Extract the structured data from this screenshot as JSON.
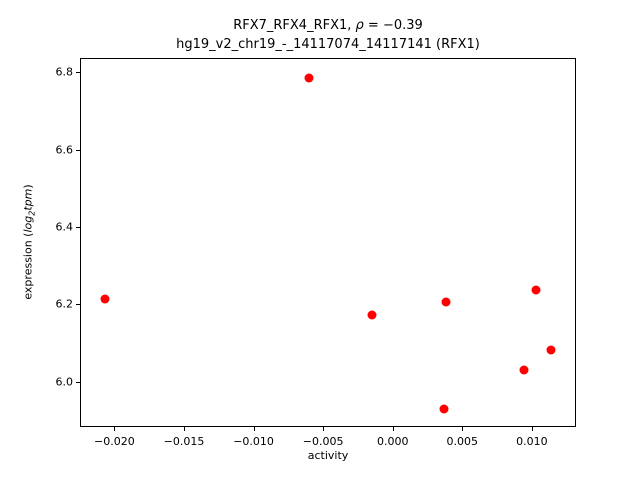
{
  "chart_data": {
    "type": "scatter",
    "title_line1": "RFX7_RFX4_RFX1, ρ = −0.39",
    "title_line2": "hg19_v2_chr19_-_14117074_14117141 (RFX1)",
    "title_parts": {
      "prefix": "RFX7_RFX4_RFX1, ",
      "rho": "ρ",
      "rest": " = −0.39"
    },
    "xlabel": "activity",
    "ylabel": "expression (log2tpm)",
    "ylabel_parts": {
      "prefix": "expression (",
      "log": "log",
      "sub": "2",
      "tpm": "tpm",
      "suffix": ")"
    },
    "marker_color": "#ff0000",
    "axes_color": "#000000",
    "grid": false,
    "legend": "none",
    "xlim": [
      -0.0224,
      0.0131
    ],
    "ylim": [
      5.886,
      6.834
    ],
    "xticks": {
      "values": [
        -0.02,
        -0.015,
        -0.01,
        -0.005,
        0.0,
        0.005,
        0.01
      ],
      "labels": [
        "−0.020",
        "−0.015",
        "−0.010",
        "−0.005",
        "0.000",
        "0.005",
        "0.010"
      ]
    },
    "yticks": {
      "values": [
        6.0,
        6.2,
        6.4,
        6.6,
        6.8
      ],
      "labels": [
        "6.0",
        "6.2",
        "6.4",
        "6.6",
        "6.8"
      ]
    },
    "points": [
      {
        "x": -0.0207,
        "y": 6.215
      },
      {
        "x": -0.006,
        "y": 6.785
      },
      {
        "x": -0.0015,
        "y": 6.172
      },
      {
        "x": 0.0038,
        "y": 6.207
      },
      {
        "x": 0.0037,
        "y": 5.93
      },
      {
        "x": 0.0094,
        "y": 6.03
      },
      {
        "x": 0.0103,
        "y": 6.237
      },
      {
        "x": 0.0114,
        "y": 6.083
      }
    ]
  }
}
